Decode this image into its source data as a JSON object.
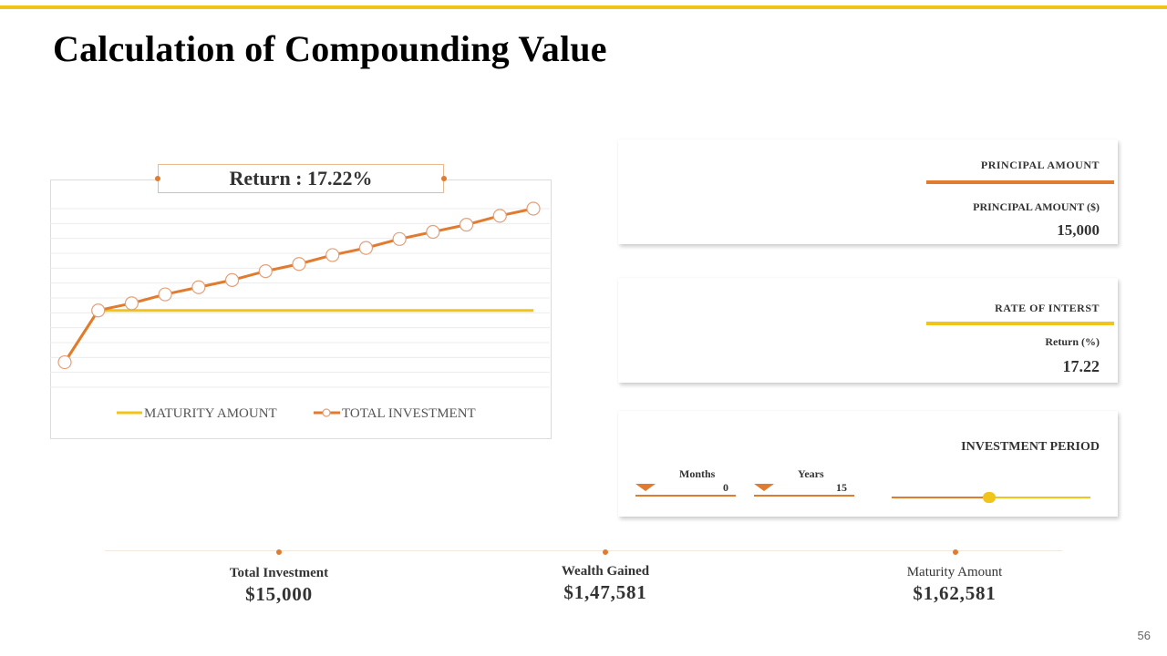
{
  "page": {
    "title": "Calculation of Compounding Value",
    "page_number": "56"
  },
  "colors": {
    "accent_yellow": "#f0c419",
    "accent_orange": "#e07b30"
  },
  "chart_data": {
    "type": "line",
    "title": "Return : 17.22%",
    "x": [
      0,
      1,
      2,
      3,
      4,
      5,
      6,
      7,
      8,
      9,
      10,
      11,
      12,
      13,
      14
    ],
    "series": [
      {
        "name": "MATURITY AMOUNT",
        "color": "#f0c419",
        "marker": "none",
        "values": [
          0.86,
          0.57,
          0.57,
          0.57,
          0.57,
          0.57,
          0.57,
          0.57,
          0.57,
          0.57,
          0.57,
          0.57,
          0.57,
          0.57,
          0.57
        ]
      },
      {
        "name": "TOTAL INVESTMENT",
        "color": "#e07b30",
        "marker": "circle",
        "values": [
          0.86,
          0.57,
          0.53,
          0.48,
          0.44,
          0.4,
          0.35,
          0.31,
          0.26,
          0.22,
          0.17,
          0.13,
          0.09,
          0.04,
          0.0
        ]
      }
    ],
    "ylim": [
      1.0,
      0.0
    ],
    "gridlines": 12,
    "legend_position": "bottom-center"
  },
  "principal": {
    "heading": "PRINCIPAL  AMOUNT",
    "label": "PRINCIPAL  AMOUNT  ($)",
    "value": "15,000"
  },
  "rate": {
    "heading": "RATE  OF INTERST",
    "label": "Return (%)",
    "value": "17.22"
  },
  "period": {
    "heading": "INVESTMENT PERIOD",
    "months_label": "Months",
    "months_value": "0",
    "years_label": "Years",
    "years_value": "15",
    "slider_fraction": 0.49
  },
  "summary": {
    "total_investment": {
      "label": "Total Investment",
      "value": "$15,000"
    },
    "wealth_gained": {
      "label": "Wealth Gained",
      "value": "$1,47,581"
    },
    "maturity_amount": {
      "label": "Maturity Amount",
      "value": "$1,62,581"
    }
  }
}
